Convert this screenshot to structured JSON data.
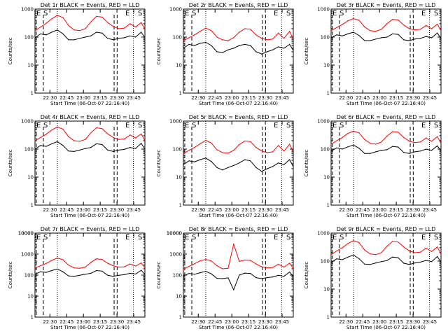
{
  "figure": {
    "ylabel": "Counts/sec",
    "xlabel": "Start Time (06-Oct-07 22:16:40)",
    "y_ticks": [
      "1",
      "10",
      "100",
      "1000"
    ],
    "x_ticks": [
      "22:30",
      "22:45",
      "23:00",
      "23:15",
      "23:30",
      "23:45"
    ],
    "marker_e": "E",
    "marker_s": "S",
    "colors": {
      "events": "#000000",
      "lld": "#ff0000",
      "axis": "#000000"
    }
  },
  "chart_data": [
    {
      "type": "line",
      "title": "Det 1r BLACK = Events, RED = LLD",
      "xlabel": "Start Time (06-Oct-07 22:16:40)",
      "ylabel": "Counts/sec",
      "xlim": [
        "22:16:40",
        "23:55"
      ],
      "ylim": [
        1,
        1000
      ],
      "yscale": "log",
      "x_minutes": [
        0,
        5,
        10,
        15,
        20,
        25,
        30,
        35,
        40,
        45,
        50,
        55,
        60,
        65,
        70,
        75,
        80,
        85,
        90,
        95,
        98
      ],
      "series": [
        {
          "name": "LLD",
          "color": "red",
          "values": [
            170,
            230,
            310,
            450,
            600,
            500,
            260,
            180,
            170,
            200,
            350,
            550,
            520,
            330,
            240,
            200,
            210,
            300,
            230,
            330,
            200
          ]
        },
        {
          "name": "Events",
          "color": "black",
          "values": [
            95,
            130,
            120,
            150,
            180,
            130,
            80,
            80,
            90,
            100,
            110,
            150,
            140,
            90,
            80,
            90,
            95,
            110,
            100,
            150,
            100
          ]
        }
      ],
      "e_marks": [
        1.2,
        70.8
      ],
      "s_marks": [
        7.5,
        73.5
      ]
    },
    {
      "type": "line",
      "title": "Det 2r BLACK = Events, RED = LLD",
      "xlabel": "Start Time (06-Oct-07 22:16:40)",
      "ylabel": "Counts/sec",
      "xlim": [
        "22:16:40",
        "23:55"
      ],
      "ylim": [
        1,
        1000
      ],
      "yscale": "log",
      "x_minutes": [
        0,
        5,
        10,
        15,
        20,
        25,
        30,
        35,
        40,
        45,
        50,
        55,
        60,
        65,
        70,
        75,
        80,
        85,
        90,
        95,
        98
      ],
      "series": [
        {
          "name": "LLD",
          "color": "red",
          "values": [
            75,
            95,
            120,
            160,
            210,
            170,
            100,
            80,
            75,
            95,
            150,
            200,
            190,
            120,
            90,
            80,
            85,
            140,
            90,
            160,
            90
          ]
        },
        {
          "name": "Events",
          "color": "black",
          "values": [
            40,
            55,
            50,
            60,
            65,
            50,
            30,
            28,
            35,
            40,
            50,
            55,
            50,
            30,
            25,
            30,
            35,
            45,
            40,
            55,
            35
          ]
        }
      ],
      "e_marks": [
        1.2,
        70.8
      ],
      "s_marks": [
        7.5,
        73.5
      ]
    },
    {
      "type": "line",
      "title": "Det 3r BLACK = Events, RED = LLD",
      "xlabel": "Start Time (06-Oct-07 22:16:40)",
      "ylabel": "Counts/sec",
      "xlim": [
        "22:16:40",
        "23:55"
      ],
      "ylim": [
        1,
        1000
      ],
      "yscale": "log",
      "x_minutes": [
        0,
        5,
        10,
        15,
        20,
        25,
        30,
        35,
        40,
        45,
        50,
        55,
        60,
        65,
        70,
        75,
        80,
        85,
        90,
        95,
        98
      ],
      "series": [
        {
          "name": "LLD",
          "color": "red",
          "values": [
            170,
            220,
            280,
            380,
            460,
            400,
            230,
            170,
            160,
            190,
            300,
            430,
            410,
            270,
            200,
            180,
            190,
            260,
            200,
            290,
            180
          ]
        },
        {
          "name": "Events",
          "color": "black",
          "values": [
            95,
            120,
            110,
            130,
            150,
            115,
            75,
            75,
            85,
            95,
            100,
            130,
            125,
            80,
            75,
            85,
            90,
            105,
            95,
            140,
            95
          ]
        }
      ],
      "e_marks": [
        1.2,
        70.8
      ],
      "s_marks": [
        7.5,
        73.5
      ]
    },
    {
      "type": "line",
      "title": "Det 4r BLACK = Events, RED = LLD",
      "xlabel": "Start Time (06-Oct-07 22:16:40)",
      "ylabel": "Counts/sec",
      "xlim": [
        "22:16:40",
        "23:55"
      ],
      "ylim": [
        1,
        1000
      ],
      "yscale": "log",
      "x_minutes": [
        0,
        5,
        10,
        15,
        20,
        25,
        30,
        35,
        40,
        45,
        50,
        55,
        60,
        65,
        70,
        75,
        80,
        85,
        90,
        95,
        98
      ],
      "series": [
        {
          "name": "LLD",
          "color": "red",
          "values": [
            200,
            260,
            340,
            480,
            620,
            520,
            280,
            200,
            190,
            220,
            380,
            580,
            540,
            350,
            260,
            220,
            230,
            320,
            250,
            350,
            210
          ]
        },
        {
          "name": "Events",
          "color": "black",
          "values": [
            100,
            135,
            125,
            155,
            185,
            135,
            85,
            82,
            92,
            105,
            115,
            155,
            145,
            92,
            82,
            92,
            98,
            115,
            105,
            160,
            105
          ]
        }
      ],
      "e_marks": [
        1.2,
        70.8
      ],
      "s_marks": [
        7.5,
        73.5
      ]
    },
    {
      "type": "line",
      "title": "Det 5r BLACK = Events, RED = LLD",
      "xlabel": "Start Time (06-Oct-07 22:16:40)",
      "ylabel": "Counts/sec",
      "xlim": [
        "22:16:40",
        "23:55"
      ],
      "ylim": [
        1,
        1000
      ],
      "yscale": "log",
      "x_minutes": [
        0,
        5,
        10,
        15,
        20,
        25,
        30,
        35,
        40,
        45,
        50,
        55,
        60,
        65,
        70,
        75,
        80,
        85,
        90,
        95,
        98
      ],
      "series": [
        {
          "name": "LLD",
          "color": "red",
          "values": [
            70,
            90,
            115,
            155,
            205,
            165,
            95,
            75,
            72,
            90,
            145,
            195,
            185,
            115,
            85,
            75,
            80,
            135,
            85,
            150,
            85
          ]
        },
        {
          "name": "Events",
          "color": "black",
          "values": [
            28,
            38,
            35,
            42,
            48,
            36,
            22,
            18,
            22,
            26,
            32,
            42,
            38,
            22,
            16,
            20,
            24,
            32,
            28,
            42,
            25
          ]
        }
      ],
      "e_marks": [
        1.2,
        70.8
      ],
      "s_marks": [
        7.5,
        73.5
      ]
    },
    {
      "type": "line",
      "title": "Det 6r BLACK = Events, RED = LLD",
      "xlabel": "Start Time (06-Oct-07 22:16:40)",
      "ylabel": "Counts/sec",
      "xlim": [
        "22:16:40",
        "23:55"
      ],
      "ylim": [
        1,
        1000
      ],
      "yscale": "log",
      "x_minutes": [
        0,
        5,
        10,
        15,
        20,
        25,
        30,
        35,
        40,
        45,
        50,
        55,
        60,
        65,
        70,
        75,
        80,
        85,
        90,
        95,
        98
      ],
      "series": [
        {
          "name": "LLD",
          "color": "red",
          "values": [
            150,
            200,
            260,
            360,
            440,
            380,
            220,
            160,
            150,
            180,
            290,
            420,
            400,
            260,
            190,
            170,
            180,
            250,
            190,
            280,
            170
          ]
        },
        {
          "name": "Events",
          "color": "black",
          "values": [
            85,
            110,
            100,
            120,
            140,
            108,
            70,
            70,
            80,
            90,
            95,
            125,
            118,
            76,
            70,
            80,
            85,
            100,
            90,
            130,
            90
          ]
        }
      ],
      "e_marks": [
        1.2,
        70.8
      ],
      "s_marks": [
        7.5,
        73.5
      ]
    },
    {
      "type": "line",
      "title": "Det 7r BLACK = Events, RED = LLD",
      "xlabel": "Start Time (06-Oct-07 22:16:40)",
      "ylabel": "Counts/sec",
      "xlim": [
        "22:16:40",
        "23:55"
      ],
      "ylim": [
        1,
        10000
      ],
      "yscale": "log",
      "x_minutes": [
        0,
        5,
        10,
        15,
        20,
        25,
        30,
        35,
        40,
        45,
        50,
        55,
        60,
        65,
        70,
        75,
        80,
        85,
        90,
        95,
        98
      ],
      "series": [
        {
          "name": "LLD",
          "color": "red",
          "values": [
            220,
            280,
            360,
            500,
            650,
            540,
            300,
            220,
            210,
            240,
            400,
            600,
            560,
            370,
            280,
            240,
            250,
            340,
            270,
            380,
            230
          ]
        },
        {
          "name": "Events",
          "color": "black",
          "values": [
            110,
            145,
            135,
            165,
            195,
            145,
            92,
            88,
            98,
            110,
            122,
            165,
            155,
            98,
            88,
            98,
            105,
            122,
            112,
            170,
            112
          ]
        }
      ],
      "e_marks": [
        1.2,
        70.8
      ],
      "s_marks": [
        7.5,
        73.5
      ]
    },
    {
      "type": "line",
      "title": "Det 8r BLACK = Events, RED = LLD",
      "xlabel": "Start Time (06-Oct-07 22:16:40)",
      "ylabel": "Counts/sec",
      "xlim": [
        "22:16:40",
        "23:55"
      ],
      "ylim": [
        1,
        10000
      ],
      "yscale": "log",
      "x_minutes": [
        0,
        5,
        10,
        15,
        20,
        25,
        30,
        35,
        40,
        45,
        50,
        55,
        60,
        65,
        70,
        75,
        80,
        85,
        90,
        95,
        98
      ],
      "series": [
        {
          "name": "LLD",
          "color": "red",
          "values": [
            190,
            260,
            350,
            480,
            560,
            470,
            280,
            200,
            210,
            3000,
            450,
            520,
            500,
            340,
            250,
            220,
            230,
            330,
            240,
            370,
            220
          ]
        },
        {
          "name": "Events",
          "color": "black",
          "values": [
            90,
            120,
            110,
            130,
            150,
            115,
            70,
            68,
            74,
            20,
            100,
            125,
            120,
            76,
            68,
            76,
            82,
            98,
            88,
            140,
            90
          ]
        }
      ],
      "e_marks": [
        1.2,
        70.8
      ],
      "s_marks": [
        7.5,
        73.5
      ]
    },
    {
      "type": "line",
      "title": "Det 9r BLACK = Events, RED = LLD",
      "xlabel": "Start Time (06-Oct-07 22:16:40)",
      "ylabel": "Counts/sec",
      "xlim": [
        "22:16:40",
        "23:55"
      ],
      "ylim": [
        1,
        1000
      ],
      "yscale": "log",
      "x_minutes": [
        0,
        5,
        10,
        15,
        20,
        25,
        30,
        35,
        40,
        45,
        50,
        55,
        60,
        65,
        70,
        75,
        80,
        85,
        90,
        95,
        98
      ],
      "series": [
        {
          "name": "LLD",
          "color": "red",
          "values": [
            170,
            230,
            300,
            420,
            540,
            460,
            250,
            180,
            170,
            200,
            340,
            500,
            480,
            320,
            230,
            200,
            210,
            290,
            220,
            320,
            190
          ]
        },
        {
          "name": "Events",
          "color": "black",
          "values": [
            90,
            120,
            112,
            138,
            165,
            122,
            78,
            76,
            86,
            96,
            105,
            140,
            132,
            84,
            76,
            86,
            92,
            106,
            96,
            145,
            96
          ]
        }
      ],
      "e_marks": [
        1.2,
        70.8
      ],
      "s_marks": [
        7.5,
        73.5
      ]
    }
  ]
}
